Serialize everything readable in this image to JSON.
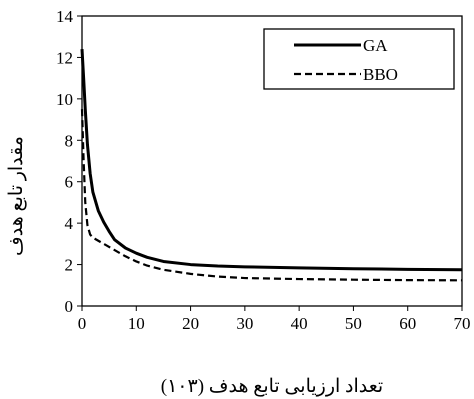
{
  "chart_data": {
    "type": "line",
    "xlabel": "تعداد ارزیابی تابع هدف (۱۰۳)",
    "ylabel": "مقدار تابع هدف",
    "xlim": [
      0,
      70
    ],
    "ylim": [
      0,
      14
    ],
    "x_ticks": [
      "0",
      "10",
      "20",
      "30",
      "40",
      "50",
      "60",
      "70"
    ],
    "y_ticks": [
      "0",
      "2",
      "4",
      "6",
      "8",
      "10",
      "12",
      "14"
    ],
    "grid": false,
    "legend_position": "top-right",
    "series": [
      {
        "name": "GA",
        "style": "solid",
        "x": [
          0,
          0.3,
          0.6,
          1,
          1.5,
          2,
          3,
          4,
          5,
          6,
          8,
          10,
          12,
          15,
          20,
          25,
          30,
          40,
          50,
          60,
          70
        ],
        "values": [
          12.4,
          11.0,
          9.5,
          7.8,
          6.4,
          5.5,
          4.6,
          4.05,
          3.6,
          3.2,
          2.8,
          2.55,
          2.35,
          2.15,
          2.0,
          1.93,
          1.89,
          1.84,
          1.8,
          1.77,
          1.75
        ]
      },
      {
        "name": "BBO",
        "style": "dashed",
        "x": [
          0,
          0.3,
          0.6,
          1,
          1.5,
          2,
          3,
          4,
          6,
          8,
          10,
          12,
          15,
          20,
          25,
          30,
          40,
          50,
          60,
          70
        ],
        "values": [
          9.5,
          7.0,
          5.0,
          3.9,
          3.45,
          3.3,
          3.15,
          3.0,
          2.7,
          2.4,
          2.15,
          1.95,
          1.75,
          1.55,
          1.42,
          1.35,
          1.3,
          1.27,
          1.25,
          1.24
        ]
      }
    ]
  }
}
